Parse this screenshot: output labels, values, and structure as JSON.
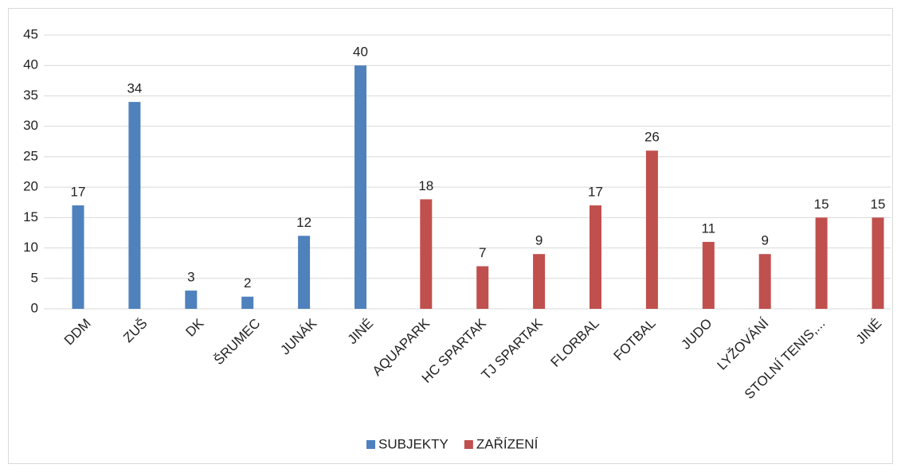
{
  "chart_data": {
    "type": "bar",
    "categories": [
      "DDM",
      "ZUŠ",
      "DK",
      "ŠRUMEC",
      "JUNÁK",
      "JINÉ",
      "AQUAPARK",
      "HC SPARTAK",
      "TJ SPARTAK",
      "FLORBAL",
      "FOTBAL",
      "JUDO",
      "LYŽOVÁNÍ",
      "STOLNÍ TENIS,...",
      "JINÉ"
    ],
    "series": [
      {
        "name": "SUBJEKTY",
        "color": "#4f81bd",
        "values": [
          17,
          34,
          3,
          2,
          12,
          40,
          null,
          null,
          null,
          null,
          null,
          null,
          null,
          null,
          null
        ]
      },
      {
        "name": "ZAŘÍZENÍ",
        "color": "#c0504d",
        "values": [
          null,
          null,
          null,
          null,
          null,
          null,
          18,
          7,
          9,
          17,
          26,
          11,
          9,
          15,
          15
        ]
      }
    ],
    "ylim": [
      0,
      45
    ],
    "yticks": [
      0,
      5,
      10,
      15,
      20,
      25,
      30,
      35,
      40,
      45
    ],
    "grid": true,
    "legend": "bottom"
  }
}
